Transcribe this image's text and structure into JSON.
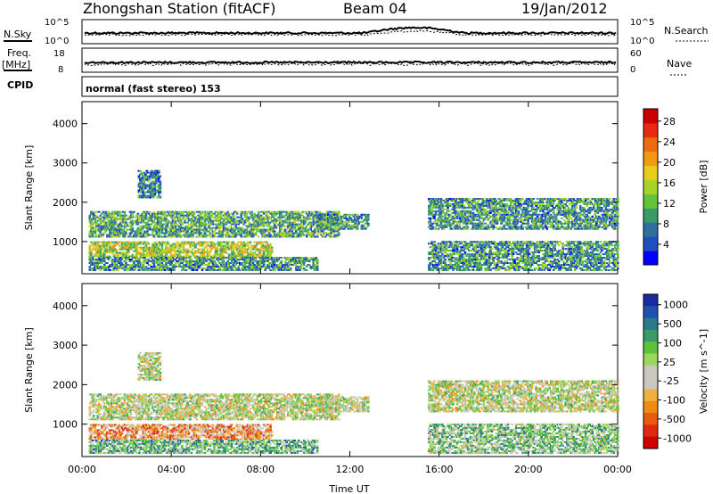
{
  "header": {
    "station": "Zhongshan Station (fitACF)",
    "beam": "Beam 04",
    "date": "19/Jan/2012"
  },
  "top_panels": {
    "nsky_label": "N.Sky",
    "nsky_ticks": [
      "10^5",
      "10^0"
    ],
    "nsearch_label": "N.Search",
    "nsearch_ticks": [
      "10^5",
      "10^0"
    ],
    "freq_label_1": "Freq.",
    "freq_label_2": "[MHz]",
    "freq_ticks": [
      "18",
      "8"
    ],
    "nave_label": "Nave",
    "nave_ticks": [
      "60",
      "0"
    ],
    "cpid_label": "CPID",
    "cpid_text": "normal (fast stereo) 153"
  },
  "chart_data": [
    {
      "type": "heatmap",
      "name": "power",
      "xlabel": "",
      "ylabel": "Slant Range [km]",
      "x_ticks": [
        "00:00",
        "04:00",
        "08:00",
        "12:00",
        "16:00",
        "20:00",
        "00:00"
      ],
      "y_ticks": [
        "1000",
        "2000",
        "3000",
        "4000"
      ],
      "ylim": [
        180,
        4560
      ],
      "colorbar_label": "Power [dB]",
      "colorbar_ticks": [
        "4",
        "8",
        "12",
        "16",
        "20",
        "24",
        "28"
      ],
      "colors": [
        "#0000ff",
        "#1f4fbf",
        "#2f6fa0",
        "#3a9a6a",
        "#62c23a",
        "#a8d428",
        "#e8cc1c",
        "#f09a14",
        "#ee6a10",
        "#e82a10",
        "#cc0000"
      ],
      "bands": [
        {
          "t0": 0.3,
          "t1": 11.5,
          "r0": 1100,
          "r1": 1750,
          "level": 0.35
        },
        {
          "t0": 0.3,
          "t1": 8.5,
          "r0": 600,
          "r1": 1000,
          "level": 0.5
        },
        {
          "t0": 0.3,
          "t1": 10.5,
          "r0": 250,
          "r1": 600,
          "level": 0.3
        },
        {
          "t0": 10.5,
          "t1": 12.8,
          "r0": 1300,
          "r1": 1700,
          "level": 0.3
        },
        {
          "t0": 15.5,
          "t1": 24,
          "r0": 250,
          "r1": 1000,
          "level": 0.3
        },
        {
          "t0": 15.5,
          "t1": 24,
          "r0": 1300,
          "r1": 2100,
          "level": 0.3
        },
        {
          "t0": 2.5,
          "t1": 3.5,
          "r0": 2100,
          "r1": 2800,
          "level": 0.25
        }
      ]
    },
    {
      "type": "heatmap",
      "name": "velocity",
      "xlabel": "Time UT",
      "ylabel": "Slant Range [km]",
      "x_ticks": [
        "00:00",
        "04:00",
        "08:00",
        "12:00",
        "16:00",
        "20:00",
        "00:00"
      ],
      "y_ticks": [
        "1000",
        "2000",
        "3000",
        "4000"
      ],
      "ylim": [
        180,
        4560
      ],
      "colorbar_label": "Velocity [m s^-1]",
      "colorbar_ticks": [
        "1000",
        "500",
        "100",
        "25",
        "-25",
        "-100",
        "-500",
        "-1000"
      ],
      "colors": [
        "#1a2aa0",
        "#1f52b0",
        "#2a7a8a",
        "#3a9a6a",
        "#5cc23a",
        "#9ad85c",
        "#c8c8c0",
        "#c8c8c0",
        "#f0b040",
        "#f08a10",
        "#e85a10",
        "#e02a10",
        "#d00000"
      ],
      "bands": [
        {
          "t0": 0.3,
          "t1": 11.5,
          "r0": 1100,
          "r1": 1750,
          "level": 0.5
        },
        {
          "t0": 0.3,
          "t1": 8.5,
          "r0": 600,
          "r1": 1000,
          "level": 0.7
        },
        {
          "t0": 0.3,
          "t1": 10.5,
          "r0": 250,
          "r1": 600,
          "level": 0.35
        },
        {
          "t0": 10.5,
          "t1": 12.8,
          "r0": 1300,
          "r1": 1700,
          "level": 0.5
        },
        {
          "t0": 15.5,
          "t1": 24,
          "r0": 250,
          "r1": 1000,
          "level": 0.4
        },
        {
          "t0": 15.5,
          "t1": 24,
          "r0": 1300,
          "r1": 2100,
          "level": 0.5
        },
        {
          "t0": 2.5,
          "t1": 3.5,
          "r0": 2100,
          "r1": 2800,
          "level": 0.5
        }
      ]
    }
  ]
}
